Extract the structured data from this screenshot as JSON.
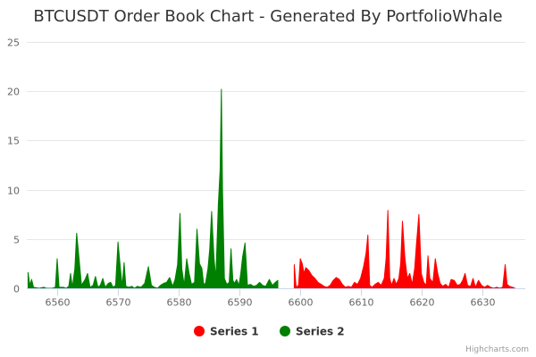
{
  "chart_data": {
    "type": "area",
    "title": "BTCUSDT Order Book Chart - Generated By PortfolioWhale",
    "xlim": [
      6555,
      6637
    ],
    "ylim": [
      0,
      25
    ],
    "x_ticks": [
      6560,
      6570,
      6580,
      6590,
      6600,
      6610,
      6620,
      6630
    ],
    "y_ticks": [
      0,
      5,
      10,
      15,
      20,
      25
    ],
    "grid": true,
    "legend_position": "bottom-center",
    "series": [
      {
        "name": "Series 2",
        "color": "#008000",
        "points": [
          [
            6555.2,
            1.6
          ],
          [
            6555.5,
            0.3
          ],
          [
            6555.8,
            0.9
          ],
          [
            6556.1,
            0.1
          ],
          [
            6557.0,
            0.0
          ],
          [
            6557.8,
            0.1
          ],
          [
            6558.2,
            0.0
          ],
          [
            6558.6,
            0.0
          ],
          [
            6559.2,
            0.0
          ],
          [
            6559.7,
            0.1
          ],
          [
            6560.0,
            3.0
          ],
          [
            6560.3,
            0.1
          ],
          [
            6561.0,
            0.1
          ],
          [
            6561.5,
            0.0
          ],
          [
            6561.9,
            0.2
          ],
          [
            6562.2,
            1.5
          ],
          [
            6562.5,
            0.1
          ],
          [
            6562.9,
            2.0
          ],
          [
            6563.2,
            5.6
          ],
          [
            6563.6,
            3.0
          ],
          [
            6564.0,
            0.3
          ],
          [
            6564.6,
            0.9
          ],
          [
            6565.0,
            1.5
          ],
          [
            6565.4,
            0.1
          ],
          [
            6565.9,
            0.3
          ],
          [
            6566.3,
            1.2
          ],
          [
            6566.7,
            0.1
          ],
          [
            6567.1,
            0.3
          ],
          [
            6567.5,
            1.0
          ],
          [
            6567.9,
            0.1
          ],
          [
            6568.4,
            0.5
          ],
          [
            6568.8,
            0.6
          ],
          [
            6569.2,
            0.1
          ],
          [
            6569.6,
            0.3
          ],
          [
            6570.0,
            4.7
          ],
          [
            6570.4,
            2.0
          ],
          [
            6570.7,
            0.2
          ],
          [
            6571.0,
            2.6
          ],
          [
            6571.3,
            0.2
          ],
          [
            6571.8,
            0.1
          ],
          [
            6572.3,
            0.2
          ],
          [
            6572.7,
            0.0
          ],
          [
            6573.2,
            0.2
          ],
          [
            6573.8,
            0.1
          ],
          [
            6574.4,
            0.5
          ],
          [
            6575.0,
            2.2
          ],
          [
            6575.5,
            0.3
          ],
          [
            6576.0,
            0.1
          ],
          [
            6576.5,
            0.0
          ],
          [
            6577.0,
            0.3
          ],
          [
            6577.5,
            0.5
          ],
          [
            6578.0,
            0.6
          ],
          [
            6578.5,
            1.1
          ],
          [
            6579.0,
            0.2
          ],
          [
            6579.4,
            0.9
          ],
          [
            6579.8,
            2.4
          ],
          [
            6580.2,
            7.6
          ],
          [
            6580.5,
            2.0
          ],
          [
            6580.9,
            0.3
          ],
          [
            6581.3,
            3.0
          ],
          [
            6581.7,
            1.5
          ],
          [
            6582.1,
            0.4
          ],
          [
            6582.6,
            0.6
          ],
          [
            6583.0,
            6.0
          ],
          [
            6583.4,
            2.5
          ],
          [
            6583.8,
            2.0
          ],
          [
            6584.1,
            0.4
          ],
          [
            6584.4,
            0.5
          ],
          [
            6584.8,
            2.0
          ],
          [
            6585.1,
            4.0
          ],
          [
            6585.4,
            7.8
          ],
          [
            6585.8,
            3.0
          ],
          [
            6586.1,
            1.0
          ],
          [
            6586.5,
            8.5
          ],
          [
            6586.8,
            12.0
          ],
          [
            6587.0,
            20.2
          ],
          [
            6587.2,
            10.0
          ],
          [
            6587.5,
            1.0
          ],
          [
            6587.9,
            0.4
          ],
          [
            6588.3,
            0.6
          ],
          [
            6588.6,
            4.0
          ],
          [
            6588.9,
            0.8
          ],
          [
            6589.2,
            0.5
          ],
          [
            6589.5,
            0.9
          ],
          [
            6589.9,
            0.3
          ],
          [
            6590.2,
            1.5
          ],
          [
            6590.5,
            3.2
          ],
          [
            6590.9,
            4.6
          ],
          [
            6591.3,
            0.3
          ],
          [
            6591.8,
            0.4
          ],
          [
            6592.3,
            0.2
          ],
          [
            6592.8,
            0.3
          ],
          [
            6593.3,
            0.6
          ],
          [
            6593.8,
            0.3
          ],
          [
            6594.3,
            0.2
          ],
          [
            6594.9,
            0.9
          ],
          [
            6595.4,
            0.3
          ],
          [
            6595.9,
            0.6
          ],
          [
            6596.3,
            0.8
          ]
        ]
      },
      {
        "name": "Series 1",
        "color": "#ff0000",
        "points": [
          [
            6599.0,
            2.4
          ],
          [
            6599.3,
            0.1
          ],
          [
            6599.7,
            0.3
          ],
          [
            6600.0,
            3.0
          ],
          [
            6600.3,
            2.5
          ],
          [
            6600.6,
            1.5
          ],
          [
            6600.9,
            2.1
          ],
          [
            6601.4,
            1.8
          ],
          [
            6601.9,
            1.3
          ],
          [
            6602.4,
            1.0
          ],
          [
            6602.9,
            0.6
          ],
          [
            6603.4,
            0.4
          ],
          [
            6603.9,
            0.2
          ],
          [
            6604.4,
            0.1
          ],
          [
            6604.9,
            0.3
          ],
          [
            6605.4,
            0.8
          ],
          [
            6605.9,
            1.1
          ],
          [
            6606.4,
            0.9
          ],
          [
            6606.9,
            0.4
          ],
          [
            6607.4,
            0.1
          ],
          [
            6607.9,
            0.2
          ],
          [
            6608.4,
            0.1
          ],
          [
            6608.9,
            0.6
          ],
          [
            6609.4,
            0.4
          ],
          [
            6609.9,
            1.0
          ],
          [
            6610.4,
            2.2
          ],
          [
            6610.8,
            3.5
          ],
          [
            6611.1,
            5.4
          ],
          [
            6611.4,
            0.3
          ],
          [
            6611.8,
            0.1
          ],
          [
            6612.3,
            0.4
          ],
          [
            6612.8,
            0.6
          ],
          [
            6613.3,
            0.3
          ],
          [
            6613.8,
            1.0
          ],
          [
            6614.1,
            3.0
          ],
          [
            6614.4,
            7.9
          ],
          [
            6614.7,
            1.0
          ],
          [
            6615.0,
            0.3
          ],
          [
            6615.4,
            1.0
          ],
          [
            6615.8,
            0.4
          ],
          [
            6616.2,
            1.0
          ],
          [
            6616.5,
            2.5
          ],
          [
            6616.8,
            6.8
          ],
          [
            6617.2,
            3.0
          ],
          [
            6617.6,
            1.0
          ],
          [
            6618.0,
            1.5
          ],
          [
            6618.4,
            0.4
          ],
          [
            6618.8,
            2.0
          ],
          [
            6619.1,
            4.5
          ],
          [
            6619.5,
            7.5
          ],
          [
            6619.9,
            1.5
          ],
          [
            6620.3,
            0.6
          ],
          [
            6620.7,
            0.3
          ],
          [
            6621.0,
            3.3
          ],
          [
            6621.3,
            1.0
          ],
          [
            6621.8,
            0.6
          ],
          [
            6622.2,
            3.0
          ],
          [
            6622.6,
            1.5
          ],
          [
            6623.0,
            0.5
          ],
          [
            6623.4,
            0.2
          ],
          [
            6623.9,
            0.4
          ],
          [
            6624.4,
            0.1
          ],
          [
            6624.8,
            0.9
          ],
          [
            6625.3,
            0.8
          ],
          [
            6625.8,
            0.3
          ],
          [
            6626.3,
            0.4
          ],
          [
            6626.7,
            0.8
          ],
          [
            6627.1,
            1.5
          ],
          [
            6627.5,
            0.3
          ],
          [
            6628.0,
            0.2
          ],
          [
            6628.4,
            1.0
          ],
          [
            6628.8,
            0.1
          ],
          [
            6629.3,
            0.8
          ],
          [
            6629.8,
            0.3
          ],
          [
            6630.3,
            0.1
          ],
          [
            6630.8,
            0.3
          ],
          [
            6631.3,
            0.1
          ],
          [
            6631.8,
            0.0
          ],
          [
            6632.3,
            0.1
          ],
          [
            6632.8,
            0.0
          ],
          [
            6633.3,
            0.1
          ],
          [
            6633.7,
            2.4
          ],
          [
            6634.0,
            0.4
          ],
          [
            6634.4,
            0.2
          ],
          [
            6634.9,
            0.1
          ],
          [
            6635.3,
            0.0
          ]
        ]
      }
    ],
    "legend": [
      {
        "name": "Series 1",
        "color": "#ff0000"
      },
      {
        "name": "Series 2",
        "color": "#008000"
      }
    ],
    "credits": "Highcharts.com"
  }
}
